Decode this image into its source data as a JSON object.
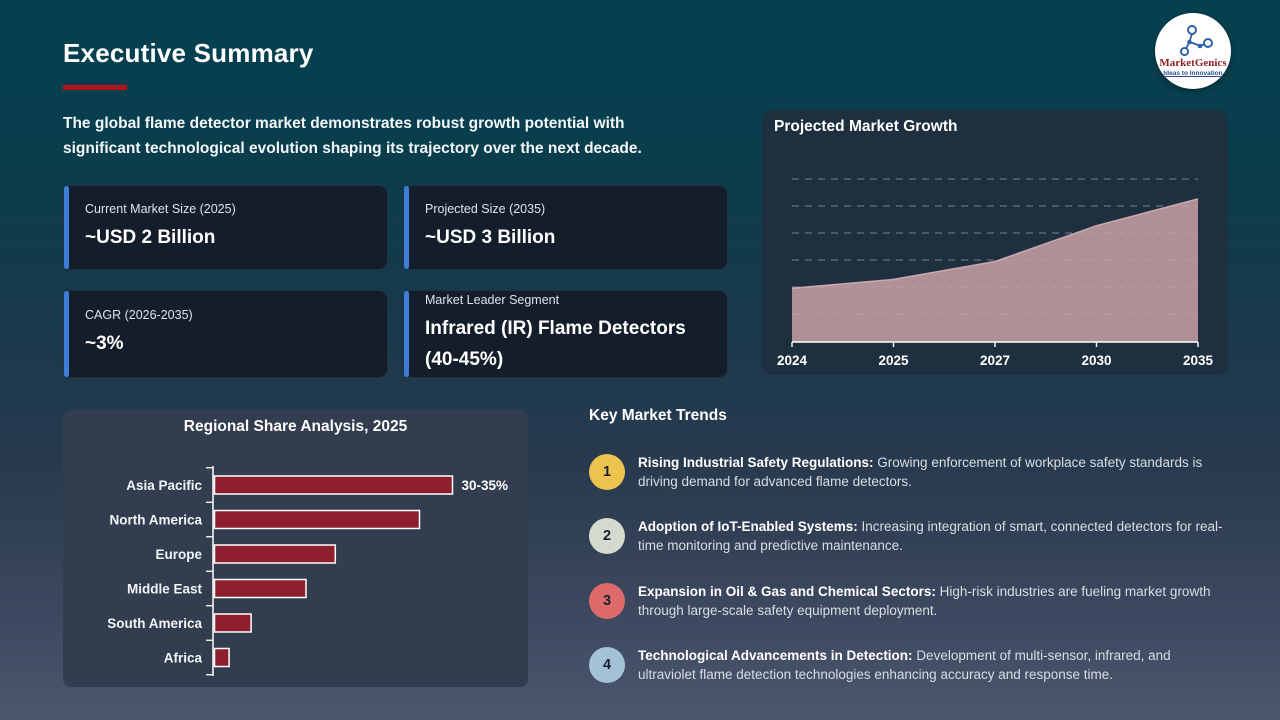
{
  "slide": {
    "title": "Executive Summary",
    "intro": "The global flame detector market demonstrates robust growth potential with significant technological evolution shaping its trajectory over the next decade."
  },
  "logo": {
    "name": "MarketGenics",
    "tagline": "Ideas to Innovation"
  },
  "stats": [
    {
      "label": "Current Market Size (2025)",
      "value": "~USD 2 Billion"
    },
    {
      "label": "Projected Size (2035)",
      "value": "~USD 3 Billion"
    },
    {
      "label": "CAGR (2026-2035)",
      "value": "~3%"
    },
    {
      "label": "Market Leader Segment",
      "value": "Infrared (IR) Flame Detectors (40-45%)"
    }
  ],
  "chart_data": [
    {
      "type": "area",
      "title": "Projected Market Growth",
      "x": [
        "2024",
        "2025",
        "2027",
        "2030",
        "2035"
      ],
      "values": [
        2.0,
        2.1,
        2.3,
        2.7,
        3.0
      ],
      "ylim": [
        1.4,
        3.3
      ],
      "grid": "dashed-horizontal",
      "legend": "none",
      "area_color": "#c59da3",
      "edge_color": "#d9b4b9"
    },
    {
      "type": "bar",
      "orientation": "horizontal",
      "title": "Regional Share Analysis, 2025",
      "categories": [
        "Asia Pacific",
        "North America",
        "Europe",
        "Middle East",
        "South America",
        "Africa"
      ],
      "values": [
        32.5,
        28,
        16.5,
        12.5,
        5,
        2
      ],
      "value_unit": "percent-share",
      "annotation": {
        "category": "Asia Pacific",
        "text": "30-35%"
      },
      "bar_color": "#8e1f2e",
      "bar_border": "#ffffff"
    }
  ],
  "trends": {
    "heading": "Key Market Trends",
    "items": [
      {
        "num": "1",
        "color": "#eec24e",
        "lead": "Rising Industrial Safety Regulations:",
        "body": "Growing enforcement of workplace safety standards is driving demand for advanced flame detectors."
      },
      {
        "num": "2",
        "color": "#d4dacf",
        "lead": "Adoption of IoT-Enabled Systems:",
        "body": "Increasing integration of smart, connected detectors for real-time monitoring and predictive maintenance."
      },
      {
        "num": "3",
        "color": "#de6b6b",
        "lead": "Expansion in Oil & Gas and Chemical Sectors:",
        "body": "High-risk industries are fueling market growth through large-scale safety equipment deployment."
      },
      {
        "num": "4",
        "color": "#a4c2d6",
        "lead": "Technological Advancements in Detection:",
        "body": "Development of multi-sensor, infrared, and ultraviolet flame detection technologies enhancing accuracy and response time."
      }
    ]
  },
  "theme": {
    "background_top": "#05404f",
    "background_bottom": "#4b576d",
    "accent_blue": "#3f7ed8",
    "underline_red": "#b41318",
    "card_bg": "#141e2a",
    "growth_panel_bg": "#1e3040",
    "regional_panel_bg": "#333d50"
  }
}
